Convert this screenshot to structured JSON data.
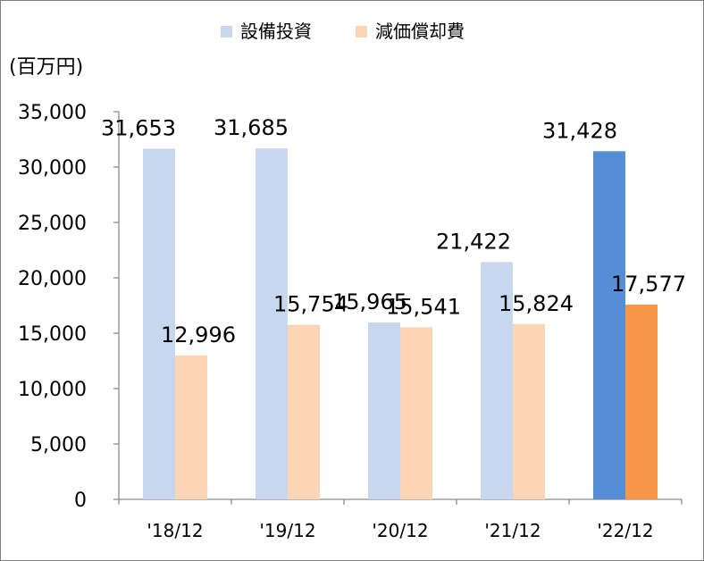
{
  "chart_data": {
    "type": "bar",
    "unit_label": "(百万円)",
    "categories": [
      "'18/12",
      "'19/12",
      "'20/12",
      "'21/12",
      "'22/12"
    ],
    "series": [
      {
        "name": "設備投資",
        "color": "#c6d7ee",
        "highlight_color": "#558ed5",
        "values": [
          31653,
          31685,
          15965,
          21422,
          31428
        ],
        "labels": [
          "31,653",
          "31,685",
          "15,965",
          "21,422",
          "31,428"
        ]
      },
      {
        "name": "減価償却費",
        "color": "#fbd5b5",
        "highlight_color": "#f79646",
        "values": [
          12996,
          15754,
          15541,
          15824,
          17577
        ],
        "labels": [
          "12,996",
          "15,754",
          "15,541",
          "15,824",
          "17,577"
        ]
      }
    ],
    "highlight_index": 4,
    "ylim": [
      0,
      35000
    ],
    "yticks": [
      0,
      5000,
      10000,
      15000,
      20000,
      25000,
      30000,
      35000
    ],
    "ytick_labels": [
      "0",
      "5,000",
      "10,000",
      "15,000",
      "20,000",
      "25,000",
      "30,000",
      "35,000"
    ],
    "grid": false,
    "legend_position": "top"
  }
}
